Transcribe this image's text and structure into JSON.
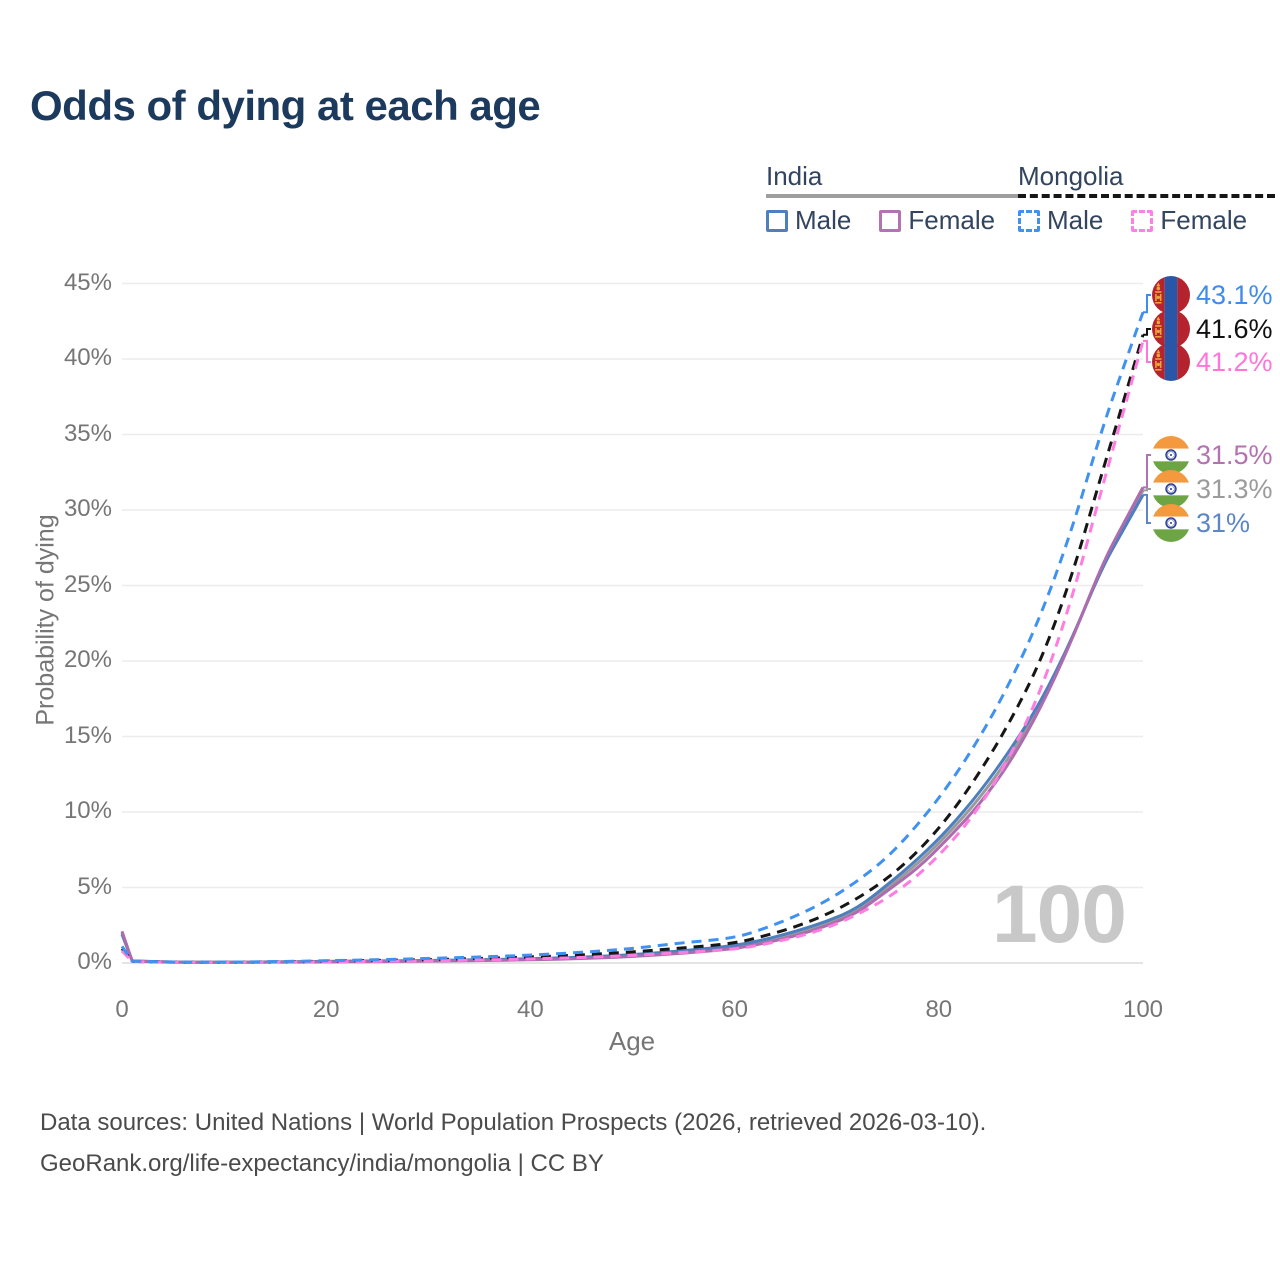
{
  "title": "Odds of dying at each age",
  "watermark": "100",
  "legend": {
    "groups": [
      {
        "label": "India",
        "line_style": "solid",
        "underline_color": "#9e9e9e",
        "items": [
          {
            "label": "Male",
            "color": "#4e7fbe",
            "dashed": false
          },
          {
            "label": "Female",
            "color": "#b273b0",
            "dashed": false
          }
        ]
      },
      {
        "label": "Mongolia",
        "line_style": "dashed",
        "underline_color": "#161616",
        "items": [
          {
            "label": "Male",
            "color": "#4192f0",
            "dashed": true
          },
          {
            "label": "Female",
            "color": "#ff80e5",
            "dashed": true
          }
        ]
      }
    ]
  },
  "axes": {
    "x": {
      "title": "Age",
      "ticks": [
        "0",
        "20",
        "40",
        "60",
        "80",
        "100"
      ],
      "range": [
        0,
        100
      ]
    },
    "y": {
      "title": "Probability of dying",
      "ticks": [
        "0%",
        "5%",
        "10%",
        "15%",
        "20%",
        "25%",
        "30%",
        "35%",
        "40%",
        "45%"
      ],
      "range": [
        0,
        45
      ],
      "grid": true
    }
  },
  "chart_data": {
    "type": "line",
    "title": "Odds of dying at each age",
    "xlabel": "Age",
    "ylabel": "Probability of dying",
    "xlim": [
      0,
      100
    ],
    "ylim": [
      0,
      45
    ],
    "unit": "percent",
    "x": [
      0,
      1,
      5,
      10,
      15,
      20,
      25,
      30,
      35,
      40,
      45,
      50,
      55,
      60,
      63,
      66,
      69,
      72,
      75,
      78,
      81,
      84,
      87,
      90,
      93,
      96,
      98,
      100
    ],
    "series": [
      {
        "name": "Mongolia Male",
        "country": "Mongolia",
        "sex": "male",
        "color": "#4192f0",
        "dashed": true,
        "end_value": 43.1,
        "values": [
          1.1,
          0.12,
          0.06,
          0.05,
          0.09,
          0.15,
          0.22,
          0.3,
          0.4,
          0.52,
          0.7,
          0.95,
          1.35,
          1.65,
          2.3,
          3.1,
          4.1,
          5.4,
          7.0,
          9.2,
          11.8,
          14.9,
          18.6,
          23.0,
          28.6,
          35.4,
          39.3,
          43.1
        ]
      },
      {
        "name": "Mongolia Both sexes",
        "country": "Mongolia",
        "sex": "both",
        "color": "#161616",
        "dashed": true,
        "end_value": 41.6,
        "values": [
          0.95,
          0.11,
          0.05,
          0.04,
          0.07,
          0.12,
          0.17,
          0.22,
          0.3,
          0.4,
          0.53,
          0.73,
          1.0,
          1.3,
          1.8,
          2.4,
          3.2,
          4.25,
          5.6,
          7.4,
          9.7,
          12.6,
          16.0,
          20.0,
          25.5,
          32.5,
          37.0,
          41.6
        ]
      },
      {
        "name": "Mongolia Female",
        "country": "Mongolia",
        "sex": "female",
        "color": "#ff7ce0",
        "dashed": true,
        "end_value": 41.2,
        "values": [
          0.8,
          0.1,
          0.04,
          0.035,
          0.05,
          0.08,
          0.11,
          0.15,
          0.2,
          0.27,
          0.36,
          0.5,
          0.7,
          0.9,
          1.25,
          1.7,
          2.3,
          3.2,
          4.3,
          5.8,
          7.8,
          10.3,
          13.7,
          18.0,
          24.0,
          31.5,
          36.3,
          41.2
        ]
      },
      {
        "name": "India Female",
        "country": "India",
        "sex": "female",
        "color": "#ad6cae",
        "dashed": false,
        "end_value": 31.5,
        "values": [
          2.1,
          0.12,
          0.05,
          0.04,
          0.05,
          0.07,
          0.09,
          0.12,
          0.16,
          0.21,
          0.29,
          0.43,
          0.64,
          0.95,
          1.32,
          1.8,
          2.45,
          3.3,
          4.8,
          6.3,
          8.3,
          10.5,
          13.3,
          16.9,
          21.3,
          26.4,
          29.0,
          31.5
        ]
      },
      {
        "name": "India Both sexes",
        "country": "India",
        "sex": "both",
        "color": "#9a9a9a",
        "dashed": false,
        "end_value": 31.3,
        "values": [
          2.0,
          0.13,
          0.055,
          0.045,
          0.06,
          0.09,
          0.12,
          0.15,
          0.19,
          0.25,
          0.34,
          0.5,
          0.72,
          1.05,
          1.45,
          1.95,
          2.6,
          3.45,
          5.0,
          6.6,
          8.6,
          10.9,
          13.7,
          17.1,
          21.35,
          26.3,
          28.8,
          31.3
        ]
      },
      {
        "name": "India Male",
        "country": "India",
        "sex": "male",
        "color": "#4e7fbe",
        "dashed": false,
        "end_value": 31.0,
        "values": [
          1.9,
          0.14,
          0.06,
          0.05,
          0.07,
          0.11,
          0.14,
          0.17,
          0.21,
          0.28,
          0.38,
          0.55,
          0.8,
          1.15,
          1.55,
          2.1,
          2.75,
          3.6,
          5.2,
          6.9,
          8.9,
          11.3,
          14.1,
          17.3,
          21.4,
          26.2,
          28.6,
          31.0
        ]
      }
    ]
  },
  "end_labels": [
    {
      "text": "43.1%",
      "value": 43.1,
      "color": "#3f8ceb",
      "flag": "mongolia",
      "series": "Mongolia Male"
    },
    {
      "text": "41.6%",
      "value": 41.6,
      "color": "#111111",
      "flag": "mongolia",
      "series": "Mongolia Both sexes"
    },
    {
      "text": "41.2%",
      "value": 41.2,
      "color": "#ff75dc",
      "flag": "mongolia",
      "series": "Mongolia Female"
    },
    {
      "text": "31.5%",
      "value": 31.5,
      "color": "#b273b0",
      "flag": "india",
      "series": "India Female"
    },
    {
      "text": "31.3%",
      "value": 31.3,
      "color": "#9b9b9b",
      "flag": "india",
      "series": "India Both sexes"
    },
    {
      "text": "31%",
      "value": 31.0,
      "color": "#5c86c6",
      "flag": "india",
      "series": "India Male"
    }
  ],
  "colors": {
    "title": "#1c3a5e",
    "axis_text": "#767676",
    "gridline": "#ececec",
    "watermark": "#c8c8c8",
    "mongolia_flag_red": "#b5232e",
    "mongolia_flag_blue": "#2a56a8",
    "mongolia_flag_gold": "#e9a63a",
    "india_flag_saffron": "#f4993e",
    "india_flag_green": "#6ea544",
    "india_flag_navy": "#2b3c92"
  },
  "footer": {
    "line1": "Data sources: United Nations | World Population Prospects (2026, retrieved 2026-03-10).",
    "line2": "GeoRank.org/life-expectancy/india/mongolia | CC BY"
  }
}
